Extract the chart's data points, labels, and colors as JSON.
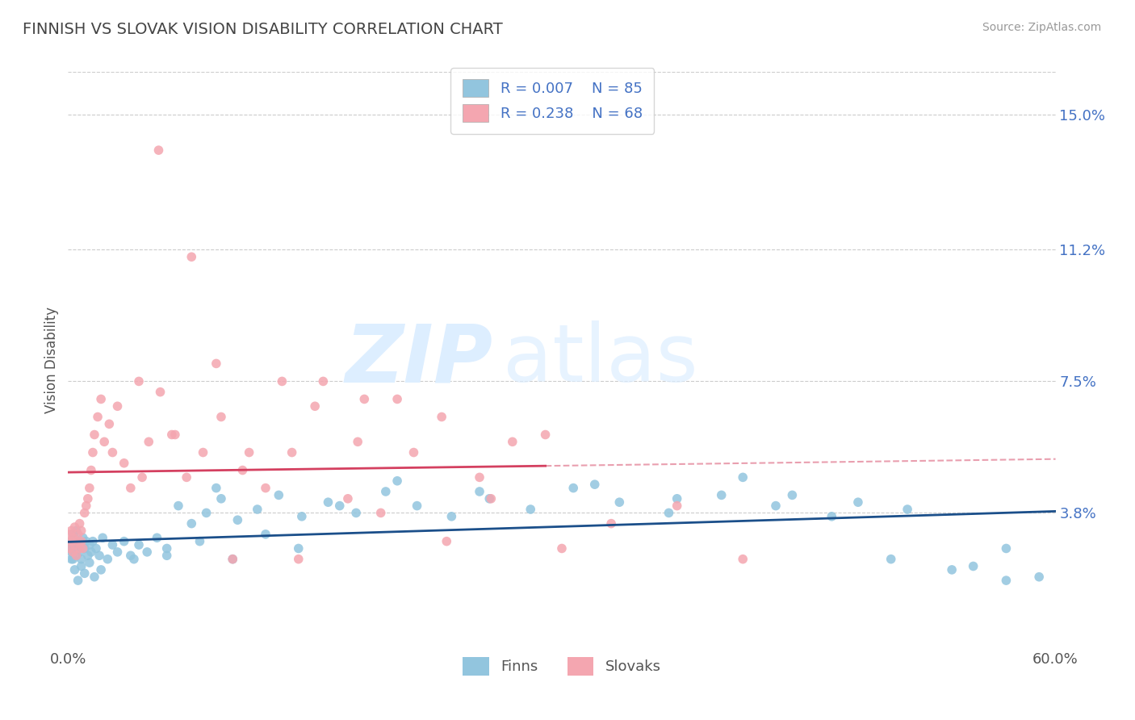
{
  "title": "FINNISH VS SLOVAK VISION DISABILITY CORRELATION CHART",
  "source": "Source: ZipAtlas.com",
  "ylabel": "Vision Disability",
  "xlim": [
    0.0,
    0.6
  ],
  "ylim": [
    0.0,
    0.162
  ],
  "yticks": [
    0.038,
    0.075,
    0.112,
    0.15
  ],
  "ytick_labels": [
    "3.8%",
    "7.5%",
    "11.2%",
    "15.0%"
  ],
  "finn_color": "#92C5DE",
  "slovak_color": "#F4A6B0",
  "finn_line_color": "#1B4F8A",
  "slovak_line_color": "#D44060",
  "finn_R": 0.007,
  "finn_N": 85,
  "slovak_R": 0.238,
  "slovak_N": 68,
  "background_color": "#ffffff",
  "grid_color": "#cccccc",
  "finns_x": [
    0.001,
    0.002,
    0.002,
    0.003,
    0.003,
    0.004,
    0.004,
    0.005,
    0.005,
    0.006,
    0.006,
    0.007,
    0.008,
    0.009,
    0.01,
    0.011,
    0.012,
    0.013,
    0.014,
    0.015,
    0.017,
    0.019,
    0.021,
    0.024,
    0.027,
    0.03,
    0.034,
    0.038,
    0.043,
    0.048,
    0.054,
    0.06,
    0.067,
    0.075,
    0.084,
    0.093,
    0.103,
    0.115,
    0.128,
    0.142,
    0.158,
    0.175,
    0.193,
    0.212,
    0.233,
    0.256,
    0.281,
    0.307,
    0.335,
    0.365,
    0.397,
    0.43,
    0.464,
    0.5,
    0.537,
    0.57,
    0.59,
    0.09,
    0.2,
    0.25,
    0.32,
    0.37,
    0.41,
    0.44,
    0.48,
    0.51,
    0.55,
    0.165,
    0.14,
    0.12,
    0.1,
    0.08,
    0.06,
    0.04,
    0.02,
    0.016,
    0.013,
    0.01,
    0.008,
    0.006,
    0.004,
    0.003,
    0.002,
    0.001,
    0.57
  ],
  "finns_y": [
    0.028,
    0.03,
    0.025,
    0.027,
    0.032,
    0.029,
    0.031,
    0.026,
    0.033,
    0.028,
    0.03,
    0.027,
    0.025,
    0.031,
    0.028,
    0.03,
    0.026,
    0.029,
    0.027,
    0.03,
    0.028,
    0.026,
    0.031,
    0.025,
    0.029,
    0.027,
    0.03,
    0.026,
    0.029,
    0.027,
    0.031,
    0.028,
    0.04,
    0.035,
    0.038,
    0.042,
    0.036,
    0.039,
    0.043,
    0.037,
    0.041,
    0.038,
    0.044,
    0.04,
    0.037,
    0.042,
    0.039,
    0.045,
    0.041,
    0.038,
    0.043,
    0.04,
    0.037,
    0.025,
    0.022,
    0.028,
    0.02,
    0.045,
    0.047,
    0.044,
    0.046,
    0.042,
    0.048,
    0.043,
    0.041,
    0.039,
    0.023,
    0.04,
    0.028,
    0.032,
    0.025,
    0.03,
    0.026,
    0.025,
    0.022,
    0.02,
    0.024,
    0.021,
    0.023,
    0.019,
    0.022,
    0.025,
    0.027,
    0.029,
    0.019
  ],
  "slovaks_x": [
    0.001,
    0.001,
    0.002,
    0.002,
    0.003,
    0.003,
    0.004,
    0.004,
    0.005,
    0.005,
    0.006,
    0.007,
    0.007,
    0.008,
    0.008,
    0.009,
    0.01,
    0.011,
    0.012,
    0.013,
    0.014,
    0.015,
    0.016,
    0.018,
    0.02,
    0.022,
    0.025,
    0.027,
    0.03,
    0.034,
    0.038,
    0.043,
    0.049,
    0.056,
    0.063,
    0.072,
    0.082,
    0.093,
    0.106,
    0.12,
    0.136,
    0.155,
    0.176,
    0.2,
    0.227,
    0.257,
    0.29,
    0.045,
    0.055,
    0.065,
    0.075,
    0.09,
    0.11,
    0.13,
    0.15,
    0.17,
    0.19,
    0.21,
    0.23,
    0.25,
    0.27,
    0.3,
    0.33,
    0.37,
    0.41,
    0.18,
    0.14,
    0.1
  ],
  "slovaks_y": [
    0.028,
    0.032,
    0.03,
    0.033,
    0.027,
    0.031,
    0.029,
    0.034,
    0.026,
    0.03,
    0.032,
    0.028,
    0.035,
    0.03,
    0.033,
    0.028,
    0.038,
    0.04,
    0.042,
    0.045,
    0.05,
    0.055,
    0.06,
    0.065,
    0.07,
    0.058,
    0.063,
    0.055,
    0.068,
    0.052,
    0.045,
    0.075,
    0.058,
    0.072,
    0.06,
    0.048,
    0.055,
    0.065,
    0.05,
    0.045,
    0.055,
    0.075,
    0.058,
    0.07,
    0.065,
    0.042,
    0.06,
    0.048,
    0.14,
    0.06,
    0.11,
    0.08,
    0.055,
    0.075,
    0.068,
    0.042,
    0.038,
    0.055,
    0.03,
    0.048,
    0.058,
    0.028,
    0.035,
    0.04,
    0.025,
    0.07,
    0.025,
    0.025
  ]
}
